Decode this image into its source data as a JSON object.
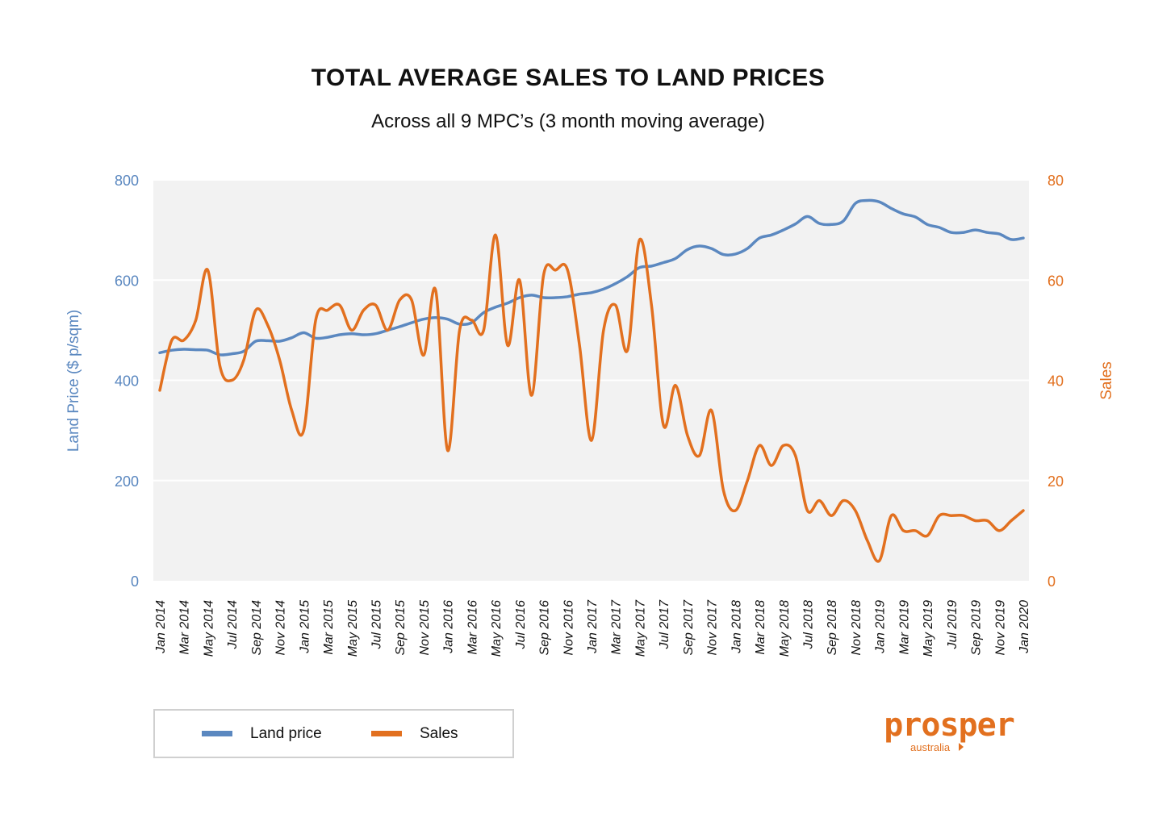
{
  "title": "TOTAL AVERAGE SALES TO LAND PRICES",
  "subtitle": "Across all 9 MPC’s (3 month moving average)",
  "colors": {
    "land_price": "#5b88c0",
    "sales": "#e2701f",
    "plot_bg": "#f2f2f2",
    "grid": "#ffffff"
  },
  "legend": [
    {
      "label": "Land price",
      "color": "#5b88c0"
    },
    {
      "label": "Sales",
      "color": "#e2701f"
    }
  ],
  "logo": {
    "word": "prosper",
    "tagline": "australia"
  },
  "chart_data": {
    "type": "line",
    "title": "TOTAL AVERAGE SALES TO LAND PRICES",
    "subtitle": "Across all 9 MPC’s (3 month moving average)",
    "ylabel_left": "Land Price ($ p/sqm)",
    "ylabel_right": "Sales",
    "ylim_left": [
      0,
      800
    ],
    "ylim_right": [
      0,
      80
    ],
    "yticks_left": [
      "0",
      "200",
      "400",
      "600",
      "800"
    ],
    "yticks_right": [
      "0",
      "20",
      "40",
      "60",
      "80"
    ],
    "x_tick_labels": [
      "Jan 2014",
      "Mar 2014",
      "May 2014",
      "Jul 2014",
      "Sep 2014",
      "Nov 2014",
      "Jan 2015",
      "Mar 2015",
      "May 2015",
      "Jul 2015",
      "Sep 2015",
      "Nov 2015",
      "Jan 2016",
      "Mar 2016",
      "May 2016",
      "Jul 2016",
      "Sep 2016",
      "Nov 2016",
      "Jan 2017",
      "Mar 2017",
      "May 2017",
      "Jul 2017",
      "Sep 2017",
      "Nov 2017",
      "Jan 2018",
      "Mar 2018",
      "May 2018",
      "Jul 2018",
      "Sep 2018",
      "Nov 2018",
      "Jan 2019",
      "Mar 2019",
      "May 2019",
      "Jul 2019",
      "Sep 2019",
      "Nov 2019",
      "Jan 2020"
    ],
    "x": [
      "Jan 2014",
      "Feb 2014",
      "Mar 2014",
      "Apr 2014",
      "May 2014",
      "Jun 2014",
      "Jul 2014",
      "Aug 2014",
      "Sep 2014",
      "Oct 2014",
      "Nov 2014",
      "Dec 2014",
      "Jan 2015",
      "Feb 2015",
      "Mar 2015",
      "Apr 2015",
      "May 2015",
      "Jun 2015",
      "Jul 2015",
      "Aug 2015",
      "Sep 2015",
      "Oct 2015",
      "Nov 2015",
      "Dec 2015",
      "Jan 2016",
      "Feb 2016",
      "Mar 2016",
      "Apr 2016",
      "May 2016",
      "Jun 2016",
      "Jul 2016",
      "Aug 2016",
      "Sep 2016",
      "Oct 2016",
      "Nov 2016",
      "Dec 2016",
      "Jan 2017",
      "Feb 2017",
      "Mar 2017",
      "Apr 2017",
      "May 2017",
      "Jun 2017",
      "Jul 2017",
      "Aug 2017",
      "Sep 2017",
      "Oct 2017",
      "Nov 2017",
      "Dec 2017",
      "Jan 2018",
      "Feb 2018",
      "Mar 2018",
      "Apr 2018",
      "May 2018",
      "Jun 2018",
      "Jul 2018",
      "Aug 2018",
      "Sep 2018",
      "Oct 2018",
      "Nov 2018",
      "Dec 2018",
      "Jan 2019",
      "Feb 2019",
      "Mar 2019",
      "Apr 2019",
      "May 2019",
      "Jun 2019",
      "Jul 2019",
      "Aug 2019",
      "Sep 2019",
      "Oct 2019",
      "Nov 2019",
      "Dec 2019",
      "Jan 2020"
    ],
    "grid": true,
    "legend_position": "bottom-left",
    "series": [
      {
        "name": "Land price",
        "axis": "left",
        "color": "#5b88c0",
        "values": [
          455,
          460,
          462,
          461,
          460,
          451,
          453,
          458,
          478,
          479,
          478,
          485,
          495,
          484,
          486,
          491,
          493,
          491,
          493,
          500,
          507,
          515,
          522,
          525,
          522,
          512,
          515,
          535,
          546,
          554,
          565,
          570,
          565,
          565,
          567,
          572,
          575,
          582,
          593,
          607,
          625,
          628,
          635,
          643,
          661,
          668,
          663,
          651,
          652,
          663,
          684,
          690,
          700,
          712,
          727,
          713,
          711,
          718,
          753,
          759,
          756,
          743,
          732,
          726,
          711,
          705,
          695,
          695,
          700,
          695,
          692,
          681,
          684
        ]
      },
      {
        "name": "Sales",
        "axis": "right",
        "color": "#e2701f",
        "values": [
          38,
          48,
          48,
          52,
          62,
          43,
          40,
          44,
          54,
          51,
          44,
          34,
          30,
          52,
          54,
          55,
          50,
          54,
          55,
          50,
          56,
          56,
          45,
          58,
          26,
          50,
          52,
          50,
          69,
          47,
          60,
          37,
          61,
          62,
          62,
          47,
          28,
          50,
          55,
          46,
          68,
          55,
          31,
          39,
          29,
          25,
          34,
          18,
          14,
          20,
          27,
          23,
          27,
          25,
          14,
          16,
          13,
          16,
          14,
          8,
          4,
          13,
          10,
          10,
          9,
          13,
          13,
          13,
          12,
          12,
          10,
          12,
          14
        ]
      }
    ]
  }
}
